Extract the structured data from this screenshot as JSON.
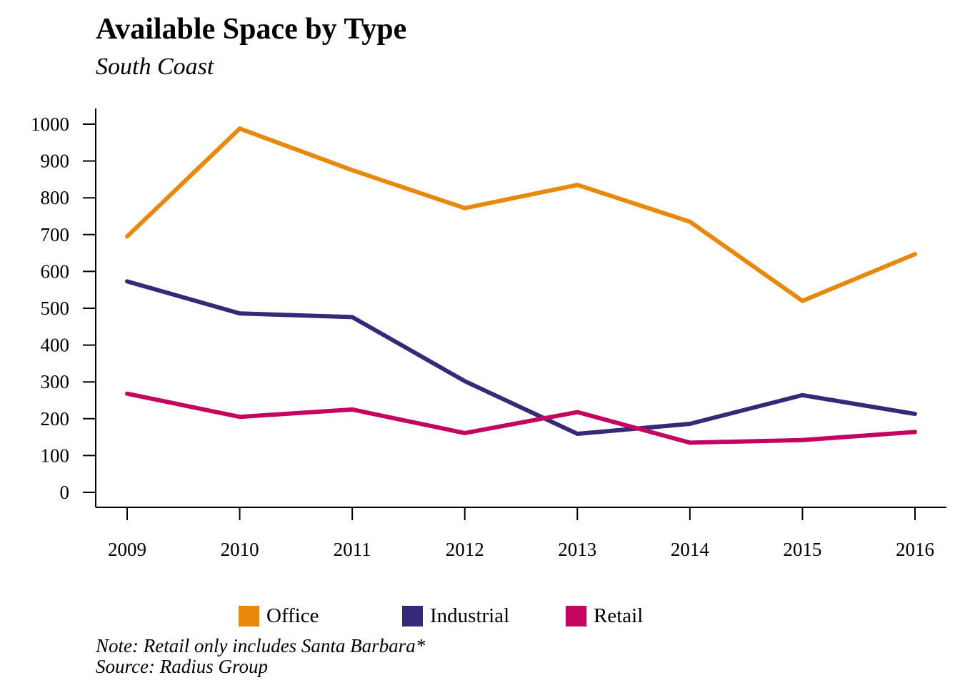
{
  "chart_data": {
    "type": "line",
    "title": "Available Space by Type",
    "subtitle": "South Coast",
    "x": [
      "2009",
      "2010",
      "2011",
      "2012",
      "2013",
      "2014",
      "2015",
      "2016"
    ],
    "yticks": [
      "0",
      "100",
      "200",
      "300",
      "400",
      "500",
      "600",
      "700",
      "800",
      "900",
      "1000"
    ],
    "ylim": [
      0,
      1000
    ],
    "series": [
      {
        "name": "Office",
        "color": "#E8890C",
        "values": [
          695,
          988,
          875,
          772,
          835,
          735,
          520,
          647
        ]
      },
      {
        "name": "Industrial",
        "color": "#352A7A",
        "values": [
          573,
          486,
          476,
          302,
          159,
          186,
          264,
          213
        ]
      },
      {
        "name": "Retail",
        "color": "#C4045F",
        "values": [
          268,
          205,
          225,
          161,
          218,
          135,
          142,
          164
        ]
      }
    ],
    "grid": false,
    "legend_position": "bottom",
    "notes": [
      "Note: Retail only includes Santa Barbara*",
      "Source: Radius Group"
    ]
  }
}
